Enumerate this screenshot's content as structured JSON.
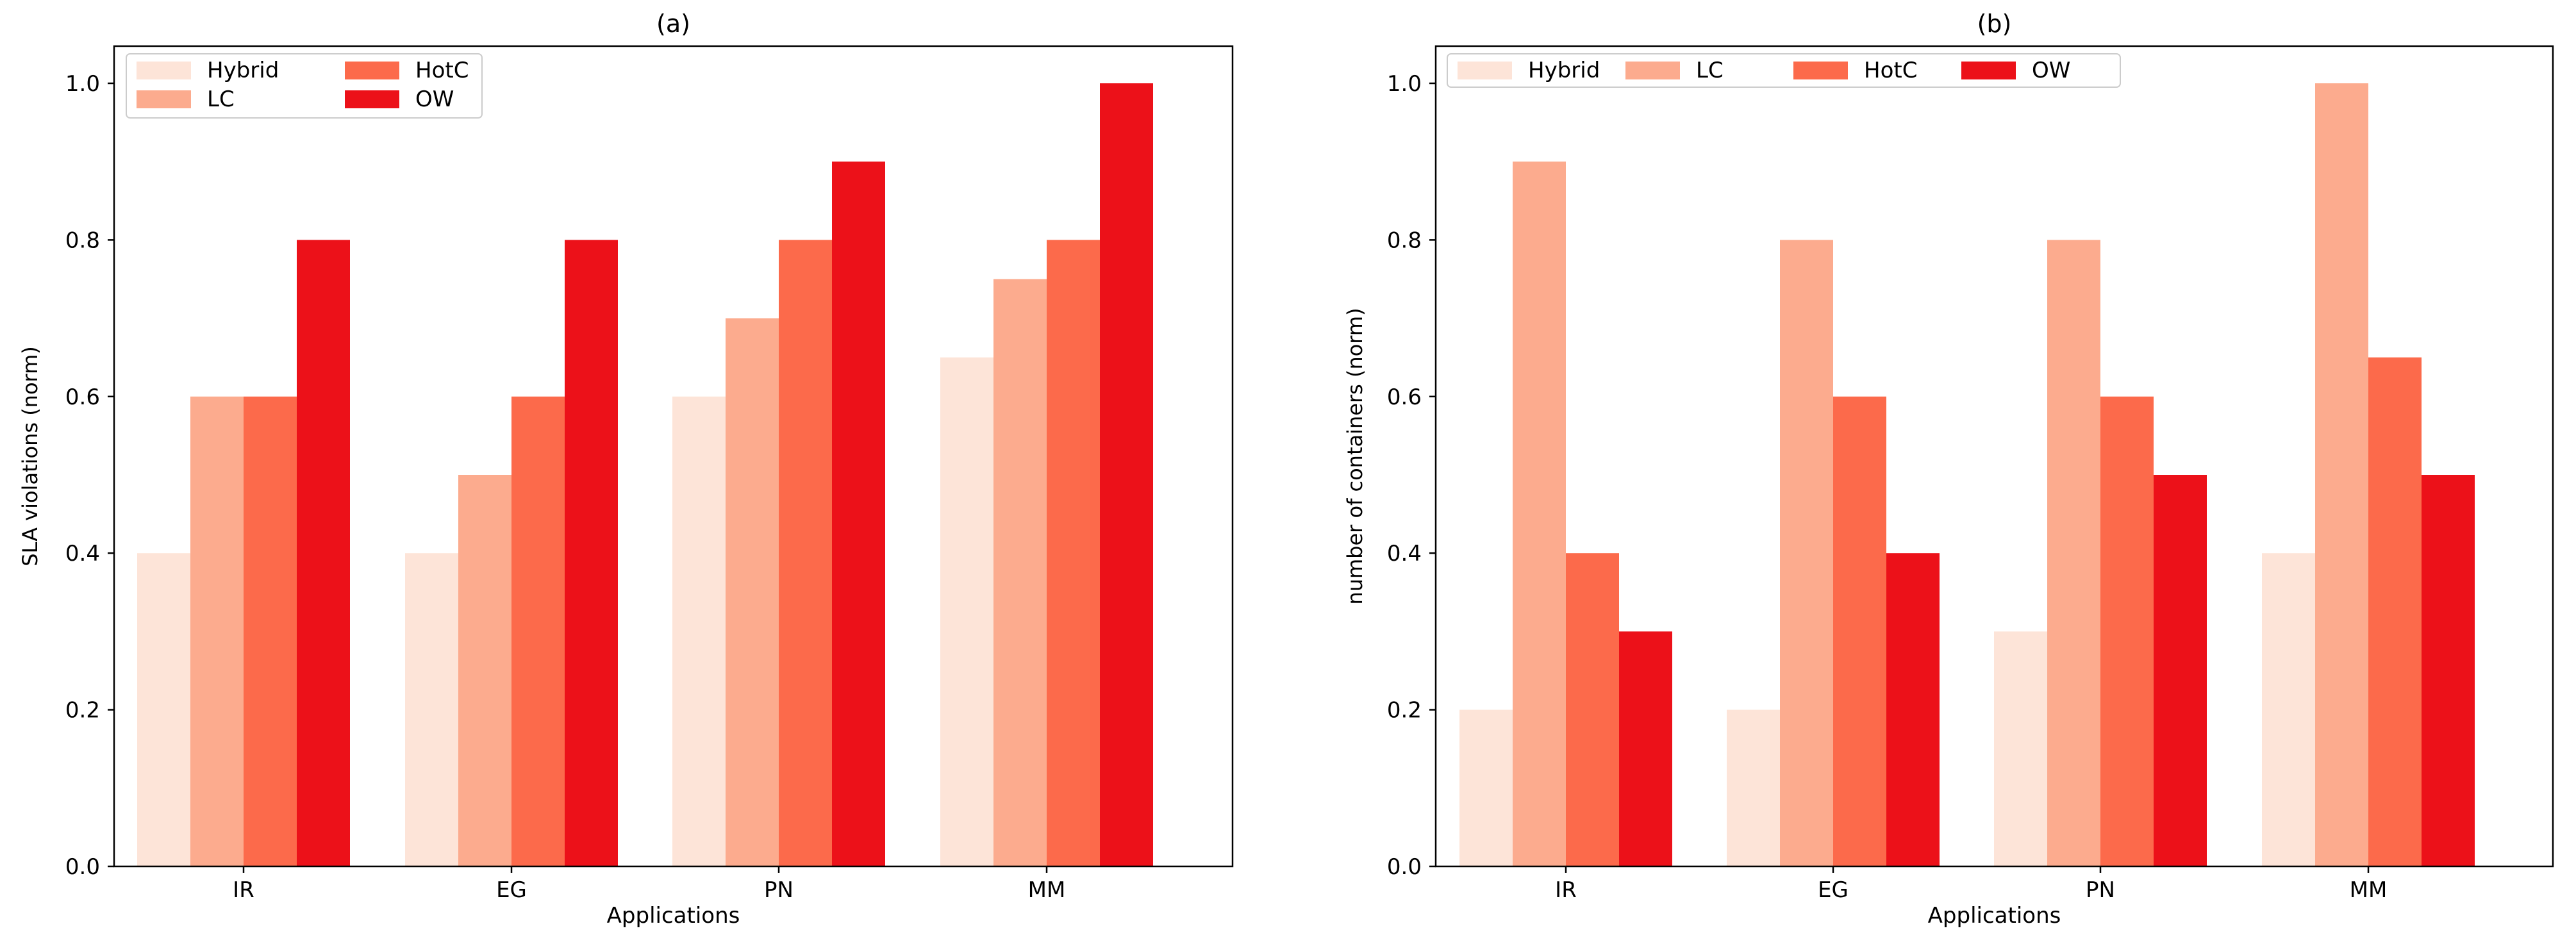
{
  "chart_data": [
    {
      "type": "bar",
      "title": "(a)",
      "xlabel": "Applications",
      "ylabel": "SLA violations (norm)",
      "categories": [
        "IR",
        "EG",
        "PN",
        "MM"
      ],
      "series": [
        {
          "name": "Hybrid",
          "values": [
            0.4,
            0.4,
            0.6,
            0.65
          ]
        },
        {
          "name": "LC",
          "values": [
            0.6,
            0.5,
            0.7,
            0.75
          ]
        },
        {
          "name": "HotC",
          "values": [
            0.6,
            0.6,
            0.8,
            0.8
          ]
        },
        {
          "name": "OW",
          "values": [
            0.8,
            0.8,
            0.9,
            1.0
          ]
        }
      ],
      "ylim": [
        0,
        1.0
      ],
      "yticks": [
        "0.0",
        "0.2",
        "0.4",
        "0.6",
        "0.8",
        "1.0"
      ],
      "legend_position": "top-left",
      "legend_columns": 2
    },
    {
      "type": "bar",
      "title": "(b)",
      "xlabel": "Applications",
      "ylabel": "number of containers (norm)",
      "categories": [
        "IR",
        "EG",
        "PN",
        "MM"
      ],
      "series": [
        {
          "name": "Hybrid",
          "values": [
            0.2,
            0.2,
            0.3,
            0.4
          ]
        },
        {
          "name": "LC",
          "values": [
            0.9,
            0.8,
            0.8,
            1.0
          ]
        },
        {
          "name": "HotC",
          "values": [
            0.4,
            0.6,
            0.6,
            0.65
          ]
        },
        {
          "name": "OW",
          "values": [
            0.3,
            0.4,
            0.5,
            0.5
          ]
        }
      ],
      "ylim": [
        0,
        1.0
      ],
      "yticks": [
        "0.0",
        "0.2",
        "0.4",
        "0.6",
        "0.8",
        "1.0"
      ],
      "legend_position": "top-left",
      "legend_columns": 4
    }
  ],
  "colors": {
    "Hybrid": "#fde4d8",
    "LC": "#fcab8e",
    "HotC": "#fc6a4b",
    "OW": "#ec1119",
    "axis": "#000000",
    "legend_border": "#cccccc"
  }
}
